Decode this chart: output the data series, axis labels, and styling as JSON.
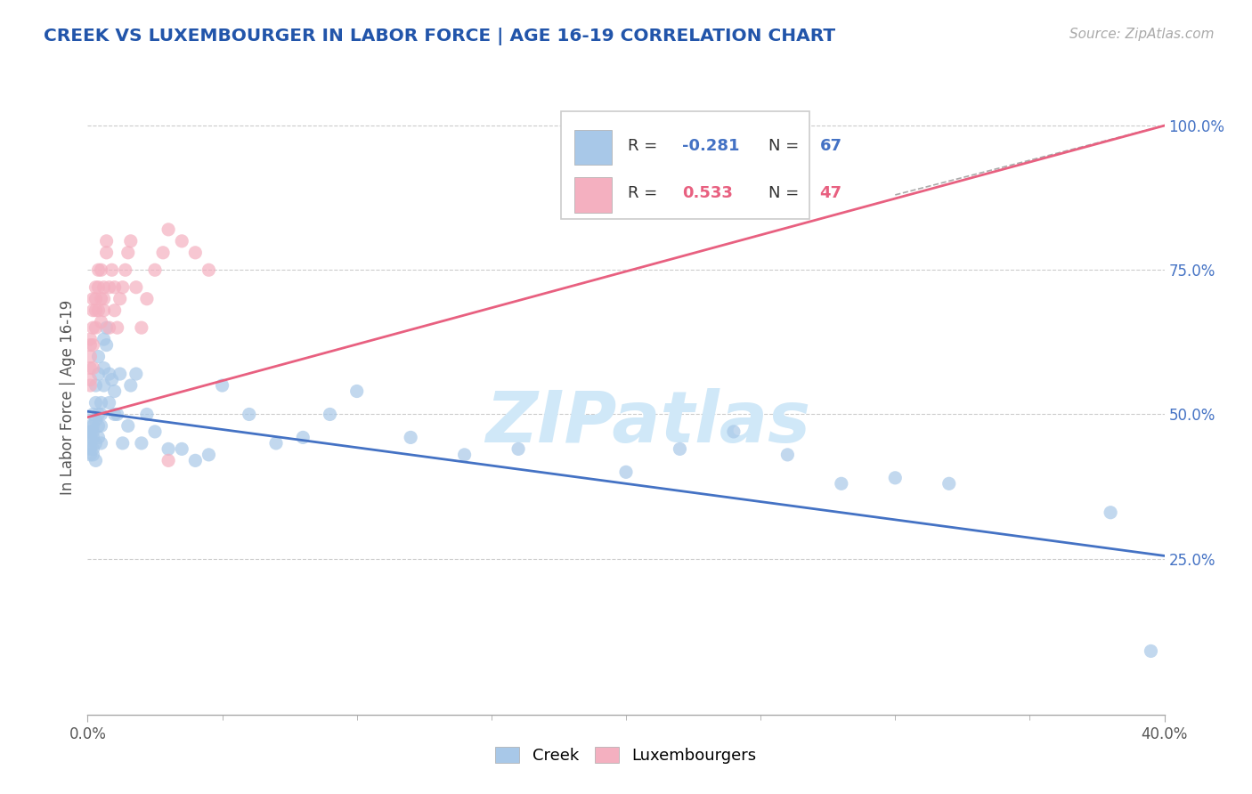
{
  "title": "CREEK VS LUXEMBOURGER IN LABOR FORCE | AGE 16-19 CORRELATION CHART",
  "source_text": "Source: ZipAtlas.com",
  "ylabel": "In Labor Force | Age 16-19",
  "xlim": [
    0.0,
    0.4
  ],
  "ylim": [
    -0.02,
    1.08
  ],
  "x_axis_labels": [
    "0.0%",
    "40.0%"
  ],
  "x_axis_positions": [
    0.0,
    0.4
  ],
  "x_minor_ticks": [
    0.05,
    0.1,
    0.15,
    0.2,
    0.25,
    0.3,
    0.35
  ],
  "yticks": [
    0.25,
    0.5,
    0.75,
    1.0
  ],
  "ytick_labels": [
    "25.0%",
    "50.0%",
    "75.0%",
    "100.0%"
  ],
  "creek_color": "#a8c8e8",
  "luxembourger_color": "#f4b0c0",
  "creek_line_color": "#4472c4",
  "luxembourger_line_color": "#e86080",
  "watermark": "ZIPatlas",
  "watermark_color": "#d0e8f8",
  "background_color": "#ffffff",
  "grid_color": "#cccccc",
  "title_color": "#2255aa",
  "legend_R_color_creek": "#4472c4",
  "legend_R_color_lux": "#e86080",
  "creek_x": [
    0.001,
    0.001,
    0.001,
    0.001,
    0.001,
    0.001,
    0.002,
    0.002,
    0.002,
    0.002,
    0.002,
    0.002,
    0.003,
    0.003,
    0.003,
    0.003,
    0.003,
    0.004,
    0.004,
    0.004,
    0.004,
    0.004,
    0.005,
    0.005,
    0.005,
    0.005,
    0.006,
    0.006,
    0.006,
    0.007,
    0.007,
    0.008,
    0.008,
    0.009,
    0.01,
    0.01,
    0.011,
    0.012,
    0.013,
    0.015,
    0.016,
    0.018,
    0.02,
    0.022,
    0.025,
    0.03,
    0.035,
    0.04,
    0.045,
    0.05,
    0.06,
    0.07,
    0.08,
    0.09,
    0.1,
    0.12,
    0.14,
    0.16,
    0.2,
    0.22,
    0.24,
    0.26,
    0.28,
    0.3,
    0.32,
    0.38,
    0.395
  ],
  "creek_y": [
    0.46,
    0.44,
    0.47,
    0.43,
    0.45,
    0.48,
    0.5,
    0.48,
    0.44,
    0.43,
    0.46,
    0.47,
    0.52,
    0.49,
    0.55,
    0.45,
    0.42,
    0.6,
    0.57,
    0.48,
    0.46,
    0.5,
    0.52,
    0.5,
    0.48,
    0.45,
    0.63,
    0.58,
    0.55,
    0.65,
    0.62,
    0.57,
    0.52,
    0.56,
    0.54,
    0.5,
    0.5,
    0.57,
    0.45,
    0.48,
    0.55,
    0.57,
    0.45,
    0.5,
    0.47,
    0.44,
    0.44,
    0.42,
    0.43,
    0.55,
    0.5,
    0.45,
    0.46,
    0.5,
    0.54,
    0.46,
    0.43,
    0.44,
    0.4,
    0.44,
    0.47,
    0.43,
    0.38,
    0.39,
    0.38,
    0.33,
    0.09
  ],
  "luxembourger_x": [
    0.001,
    0.001,
    0.001,
    0.001,
    0.001,
    0.001,
    0.002,
    0.002,
    0.002,
    0.002,
    0.002,
    0.003,
    0.003,
    0.003,
    0.003,
    0.004,
    0.004,
    0.004,
    0.005,
    0.005,
    0.005,
    0.006,
    0.006,
    0.006,
    0.007,
    0.007,
    0.008,
    0.008,
    0.009,
    0.01,
    0.01,
    0.011,
    0.012,
    0.013,
    0.014,
    0.015,
    0.016,
    0.018,
    0.02,
    0.022,
    0.025,
    0.028,
    0.03,
    0.035,
    0.04,
    0.045,
    0.03
  ],
  "luxembourger_y": [
    0.58,
    0.6,
    0.55,
    0.62,
    0.56,
    0.63,
    0.65,
    0.68,
    0.62,
    0.58,
    0.7,
    0.65,
    0.7,
    0.72,
    0.68,
    0.72,
    0.68,
    0.75,
    0.7,
    0.66,
    0.75,
    0.7,
    0.68,
    0.72,
    0.78,
    0.8,
    0.72,
    0.65,
    0.75,
    0.68,
    0.72,
    0.65,
    0.7,
    0.72,
    0.75,
    0.78,
    0.8,
    0.72,
    0.65,
    0.7,
    0.75,
    0.78,
    0.82,
    0.8,
    0.78,
    0.75,
    0.42
  ],
  "creek_trend_x": [
    0.0,
    0.4
  ],
  "creek_trend_y": [
    0.505,
    0.255
  ],
  "lux_trend_x": [
    0.0,
    0.4
  ],
  "lux_trend_y": [
    0.495,
    1.0
  ]
}
